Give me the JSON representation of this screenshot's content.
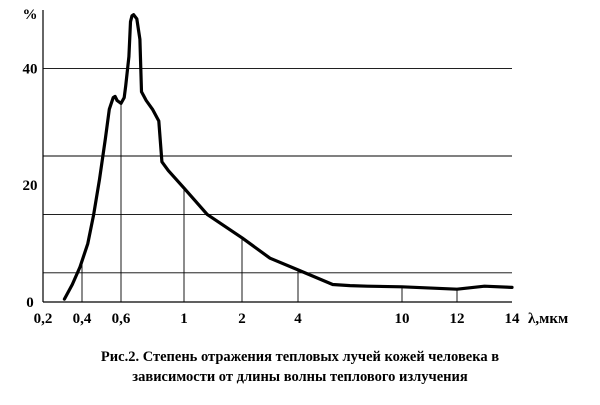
{
  "chart_data": {
    "type": "line",
    "title": "",
    "xlabel": "λ,мкм",
    "ylabel": "%",
    "ylim": [
      0,
      50
    ],
    "grid": {
      "horizontal": true,
      "vertical_drop_lines": true
    },
    "y_gridlines": [
      5,
      15,
      25,
      40
    ],
    "y_ticks": [
      {
        "value": 0,
        "label": "0"
      },
      {
        "value": 20,
        "label": "20"
      },
      {
        "value": 40,
        "label": "40"
      },
      {
        "value": 50,
        "label": "%"
      }
    ],
    "x_ticks": [
      {
        "value": 0.2,
        "label": "0,2"
      },
      {
        "value": 0.4,
        "label": "0,4"
      },
      {
        "value": 0.6,
        "label": "0,6"
      },
      {
        "value": 1,
        "label": "1"
      },
      {
        "value": 2,
        "label": "2"
      },
      {
        "value": 4,
        "label": "4"
      },
      {
        "value": 10,
        "label": "10"
      },
      {
        "value": 12,
        "label": "12"
      },
      {
        "value": 14,
        "label": "14"
      }
    ],
    "drop_lines_x": [
      0.4,
      0.6,
      1,
      2,
      4,
      10,
      12
    ],
    "series": [
      {
        "x": [
          0.31,
          0.35,
          0.39,
          0.43,
          0.46,
          0.49,
          0.52,
          0.54,
          0.56,
          0.57,
          0.58,
          0.6,
          0.62,
          0.63,
          0.65,
          0.66,
          0.67,
          0.68,
          0.7,
          0.72,
          0.73,
          0.76,
          0.8,
          0.84,
          0.86,
          0.9,
          1,
          1.4,
          2,
          3,
          4,
          6,
          7,
          8,
          10,
          12,
          13,
          14
        ],
        "y": [
          0.5,
          3,
          6,
          10,
          15,
          21,
          28,
          33,
          35,
          35.2,
          34.5,
          34,
          35,
          37,
          42,
          48,
          49,
          49.2,
          48.5,
          45,
          36,
          34.5,
          33,
          31,
          24,
          22.5,
          19.5,
          15,
          11,
          7.5,
          5.5,
          3,
          2.8,
          2.7,
          2.6,
          2.2,
          2.7,
          2.5
        ]
      }
    ],
    "caption": [
      "Рис.2. Степень отражения тепловых лучей кожей человека в",
      "зависимости от длины волны теплового излучения"
    ]
  }
}
